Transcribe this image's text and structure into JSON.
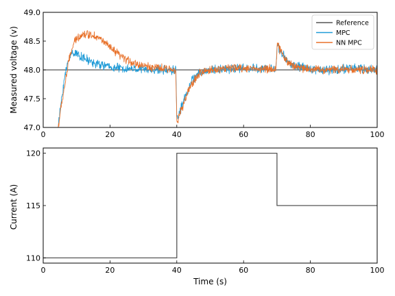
{
  "colors": {
    "reference": "#555555",
    "mpc": "#1f9bd7",
    "nn_mpc": "#e8712a",
    "current": "#555555"
  },
  "chart_data": [
    {
      "type": "line",
      "xlabel": "",
      "ylabel": "Measured voltage (v)",
      "xlim": [
        0,
        100
      ],
      "ylim": [
        47.0,
        49.0
      ],
      "xticks": [
        0,
        20,
        40,
        60,
        80,
        100
      ],
      "yticks": [
        47.0,
        47.5,
        48.0,
        48.5,
        49.0
      ],
      "ytick_labels": [
        "47.0",
        "47.5",
        "48.0",
        "48.5",
        "49.0"
      ],
      "legend": {
        "position": "top-right"
      },
      "series": [
        {
          "name": "Reference",
          "key": "reference",
          "x": [
            0,
            100
          ],
          "y": [
            48.0,
            48.0
          ]
        },
        {
          "name": "MPC",
          "key": "mpc",
          "x": [
            4.5,
            5.5,
            6.5,
            7.5,
            8.5,
            9.5,
            11,
            12,
            14,
            16,
            18,
            20,
            24,
            28,
            32,
            36,
            39.7,
            40,
            40.3,
            41,
            42,
            43,
            44,
            45,
            47,
            50,
            55,
            60,
            65,
            69.7,
            70.1,
            70.8,
            72,
            73,
            74,
            76,
            80,
            85,
            90,
            95,
            100
          ],
          "y": [
            47.0,
            47.5,
            47.9,
            48.15,
            48.3,
            48.3,
            48.25,
            48.2,
            48.15,
            48.1,
            48.08,
            48.05,
            48.02,
            48.02,
            48.0,
            48.0,
            48.0,
            47.25,
            47.15,
            47.3,
            47.45,
            47.6,
            47.75,
            47.85,
            47.95,
            48.0,
            48.02,
            48.03,
            48.02,
            48.02,
            48.45,
            48.35,
            48.25,
            48.15,
            48.1,
            48.05,
            48.02,
            48.0,
            48.02,
            48.02,
            48.0
          ],
          "noise": 0.06
        },
        {
          "name": "NN MPC",
          "key": "nn_mpc",
          "x": [
            4.5,
            5.5,
            6.5,
            7.5,
            8.5,
            9.5,
            11,
            12,
            14,
            16,
            18,
            20,
            24,
            28,
            32,
            36,
            39.7,
            40,
            40.3,
            41,
            42,
            43,
            44,
            45,
            47,
            50,
            55,
            60,
            65,
            69.7,
            70.1,
            70.8,
            72,
            73,
            74,
            76,
            80,
            85,
            90,
            95,
            100
          ],
          "y": [
            47.0,
            47.4,
            47.75,
            48.1,
            48.35,
            48.5,
            48.6,
            48.62,
            48.62,
            48.58,
            48.5,
            48.38,
            48.2,
            48.1,
            48.05,
            48.02,
            48.0,
            47.2,
            47.1,
            47.25,
            47.4,
            47.55,
            47.7,
            47.8,
            47.95,
            48.0,
            48.03,
            48.03,
            48.02,
            48.02,
            48.45,
            48.35,
            48.25,
            48.15,
            48.1,
            48.05,
            48.02,
            48.0,
            48.02,
            48.0,
            48.0
          ],
          "noise": 0.055
        }
      ]
    },
    {
      "type": "line",
      "xlabel": "Time (s)",
      "ylabel": "Current (A)",
      "xlim": [
        0,
        100
      ],
      "ylim": [
        109.5,
        120.5
      ],
      "xticks": [
        0,
        20,
        40,
        60,
        80,
        100
      ],
      "yticks": [
        110,
        115,
        120
      ],
      "ytick_labels": [
        "110",
        "115",
        "120"
      ],
      "series": [
        {
          "key": "current",
          "x": [
            0,
            40,
            40,
            70,
            70,
            100
          ],
          "y": [
            110,
            110,
            120,
            120,
            115,
            115
          ]
        }
      ]
    }
  ]
}
